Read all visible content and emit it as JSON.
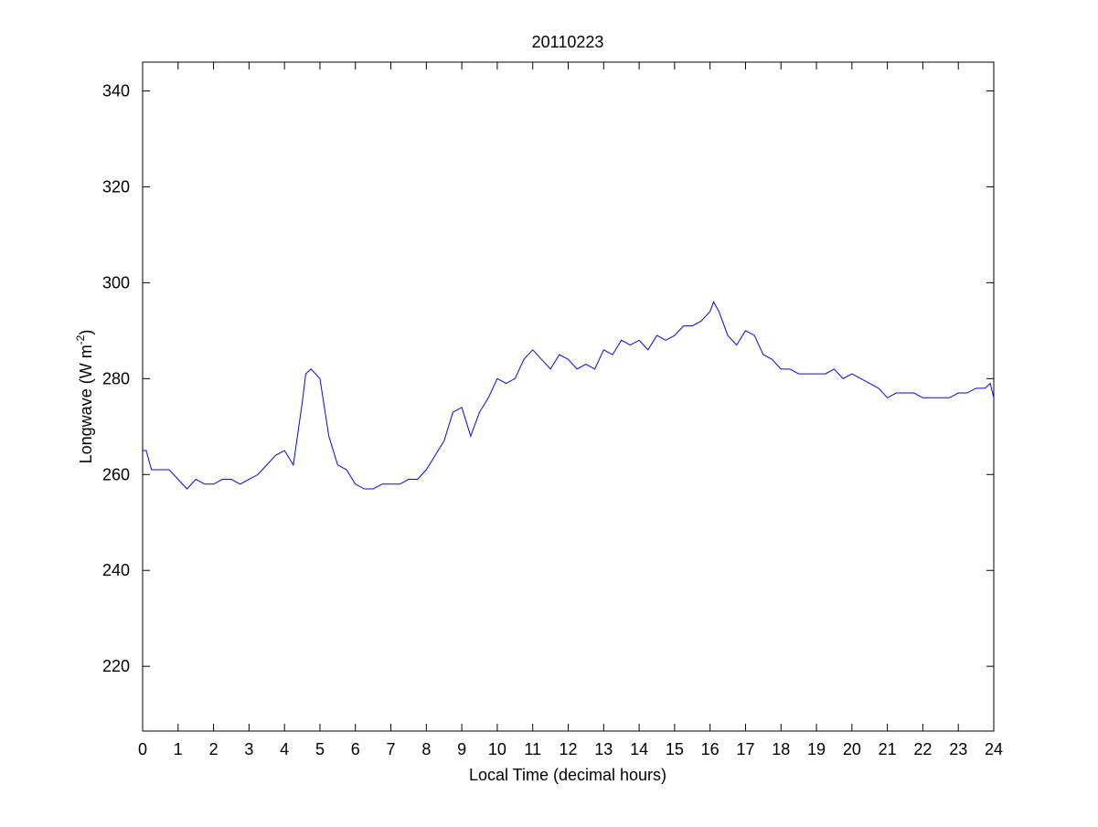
{
  "chart_data": {
    "type": "line",
    "title": "20110223",
    "xlabel": "Local Time (decimal hours)",
    "ylabel": {
      "text": "Longwave (W m",
      "superscript": "-2",
      "suffix": ")"
    },
    "x": [
      0,
      0.1,
      0.25,
      0.5,
      0.75,
      1,
      1.25,
      1.5,
      1.75,
      2,
      2.25,
      2.5,
      2.75,
      3,
      3.25,
      3.5,
      3.75,
      4,
      4.25,
      4.5,
      4.6,
      4.75,
      5,
      5.25,
      5.5,
      5.75,
      6,
      6.25,
      6.5,
      6.75,
      7,
      7.25,
      7.5,
      7.75,
      8,
      8.25,
      8.5,
      8.75,
      9,
      9.25,
      9.5,
      9.75,
      10,
      10.25,
      10.5,
      10.75,
      11,
      11.25,
      11.5,
      11.75,
      12,
      12.25,
      12.5,
      12.75,
      13,
      13.25,
      13.5,
      13.75,
      14,
      14.25,
      14.5,
      14.75,
      15,
      15.25,
      15.5,
      15.75,
      16,
      16.1,
      16.25,
      16.5,
      16.75,
      17,
      17.25,
      17.5,
      17.75,
      18,
      18.25,
      18.5,
      18.75,
      19,
      19.25,
      19.5,
      19.75,
      20,
      20.25,
      20.5,
      20.75,
      21,
      21.25,
      21.5,
      21.75,
      22,
      22.25,
      22.5,
      22.75,
      23,
      23.25,
      23.5,
      23.75,
      23.9,
      24
    ],
    "values": [
      265,
      265,
      261,
      261,
      261,
      259,
      257,
      259,
      258,
      258,
      259,
      259,
      258,
      259,
      260,
      262,
      264,
      265,
      262,
      275,
      281,
      282,
      280,
      268,
      262,
      261,
      258,
      257,
      257,
      258,
      258,
      258,
      259,
      259,
      261,
      264,
      267,
      273,
      274,
      268,
      273,
      276,
      280,
      279,
      280,
      284,
      286,
      284,
      282,
      285,
      284,
      282,
      283,
      282,
      286,
      285,
      288,
      287,
      288,
      286,
      289,
      288,
      289,
      291,
      291,
      292,
      294,
      296,
      294,
      289,
      287,
      290,
      289,
      285,
      284,
      282,
      282,
      281,
      281,
      281,
      281,
      282,
      280,
      281,
      280,
      279,
      278,
      276,
      277,
      277,
      277,
      276,
      276,
      276,
      276,
      277,
      277,
      278,
      278,
      279,
      276
    ],
    "color": "#0000ff",
    "xlim": [
      0,
      24
    ],
    "xticks": [
      0,
      1,
      2,
      3,
      4,
      5,
      6,
      7,
      8,
      9,
      10,
      11,
      12,
      13,
      14,
      15,
      16,
      17,
      18,
      19,
      20,
      21,
      22,
      23,
      24
    ],
    "ylim": [
      206.5,
      346
    ],
    "yticks": [
      220,
      240,
      260,
      280,
      300,
      320,
      340
    ]
  }
}
